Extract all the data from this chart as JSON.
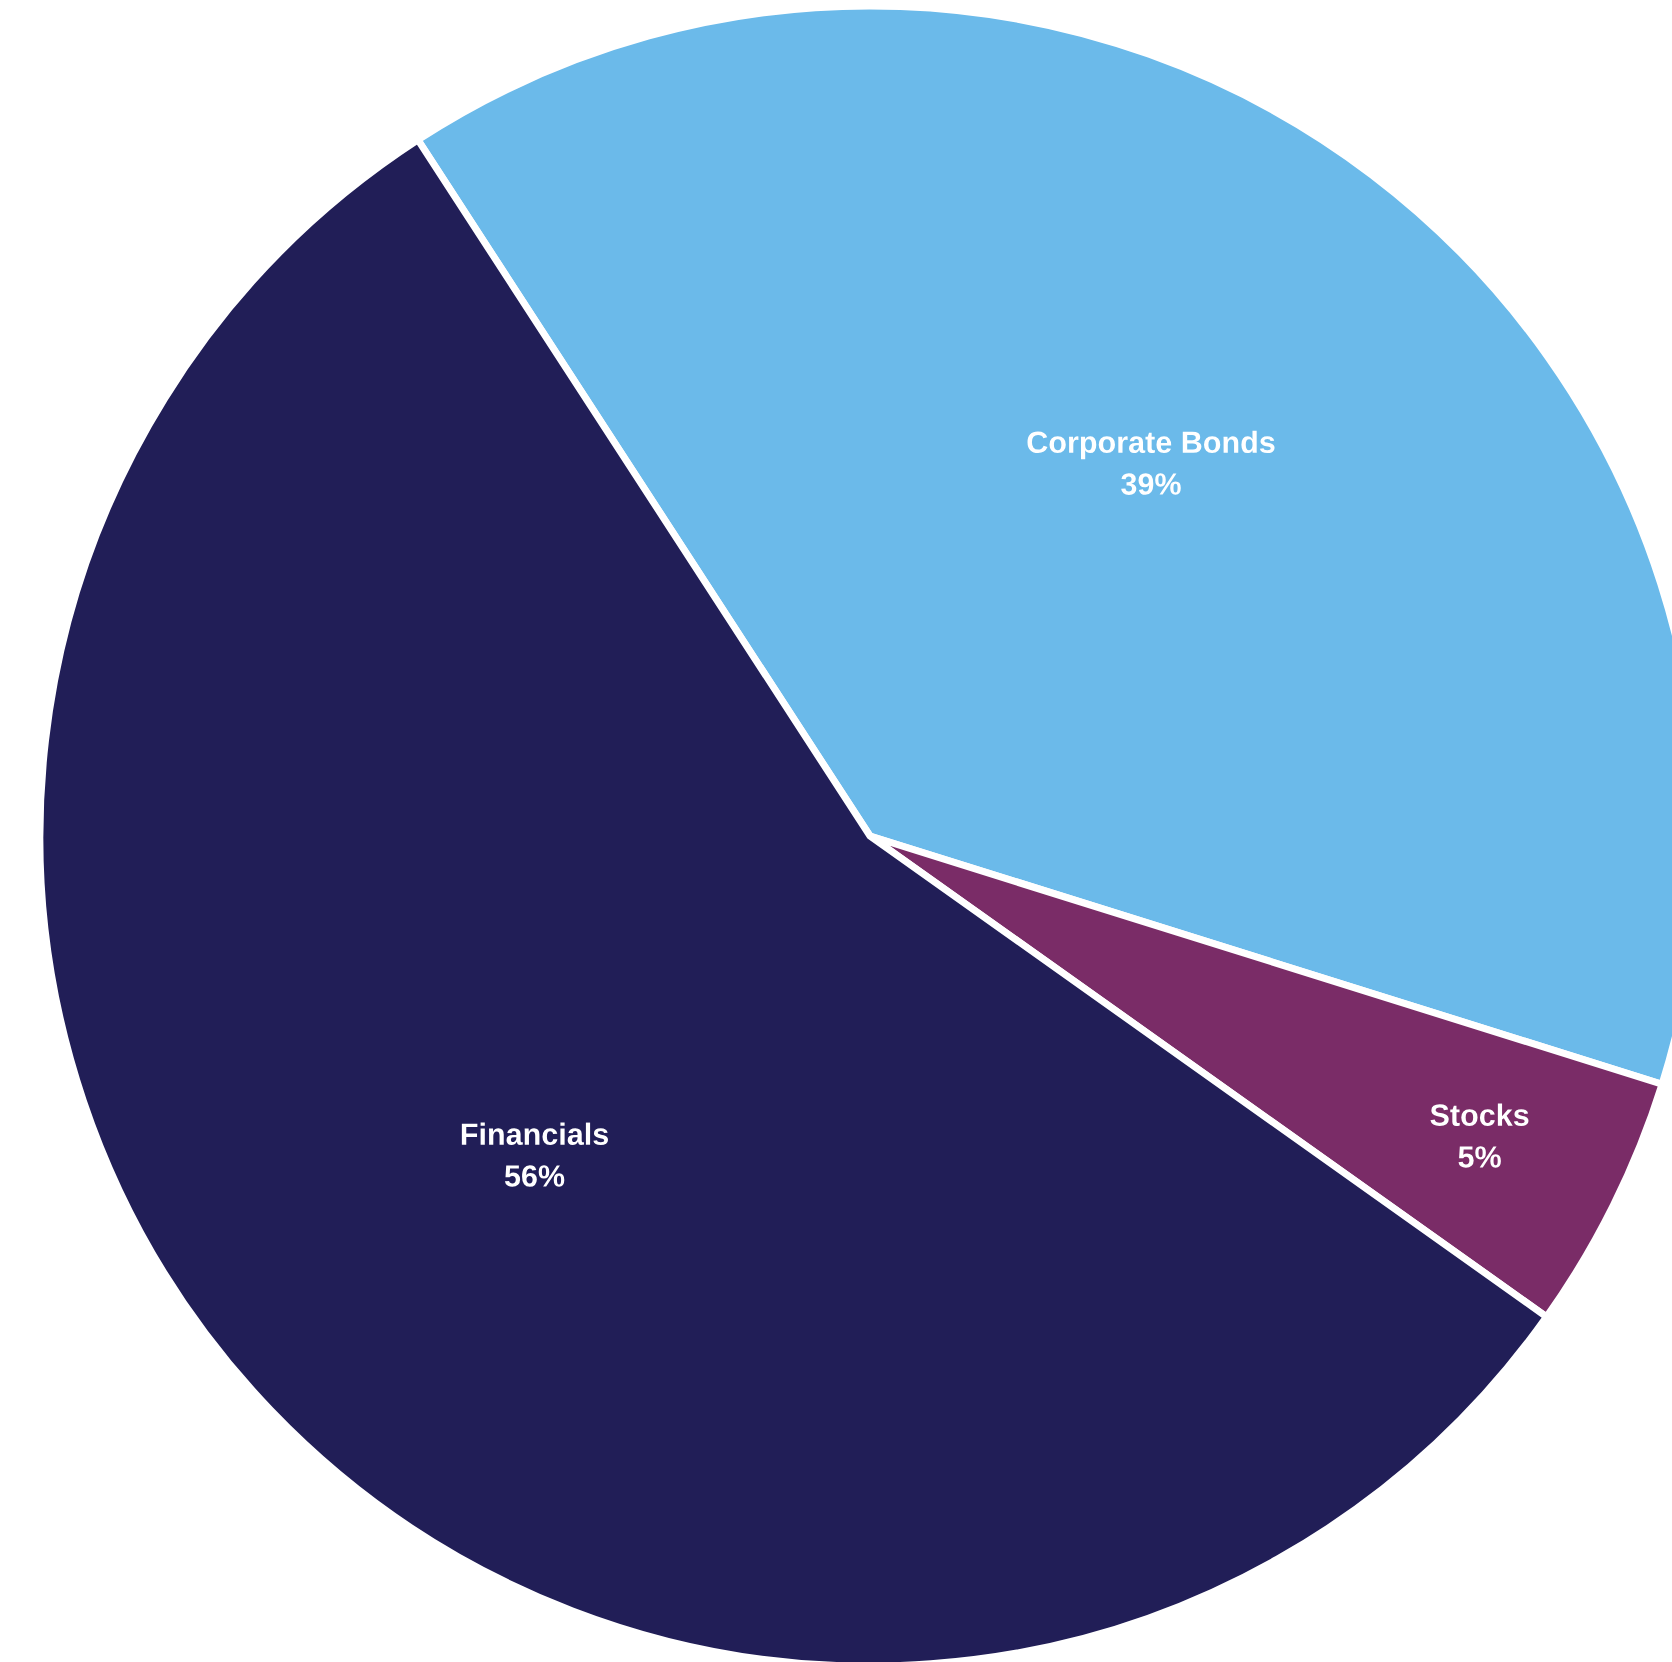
{
  "chart_data": {
    "type": "pie",
    "categories": [
      "Corporate Bonds",
      "Stocks",
      "Financials"
    ],
    "values": [
      39,
      5,
      56
    ],
    "colors": [
      "#6bbaea",
      "#7a2c67",
      "#211e57"
    ],
    "value_labels": [
      "39%",
      "5%",
      "56%"
    ],
    "legend": false
  }
}
